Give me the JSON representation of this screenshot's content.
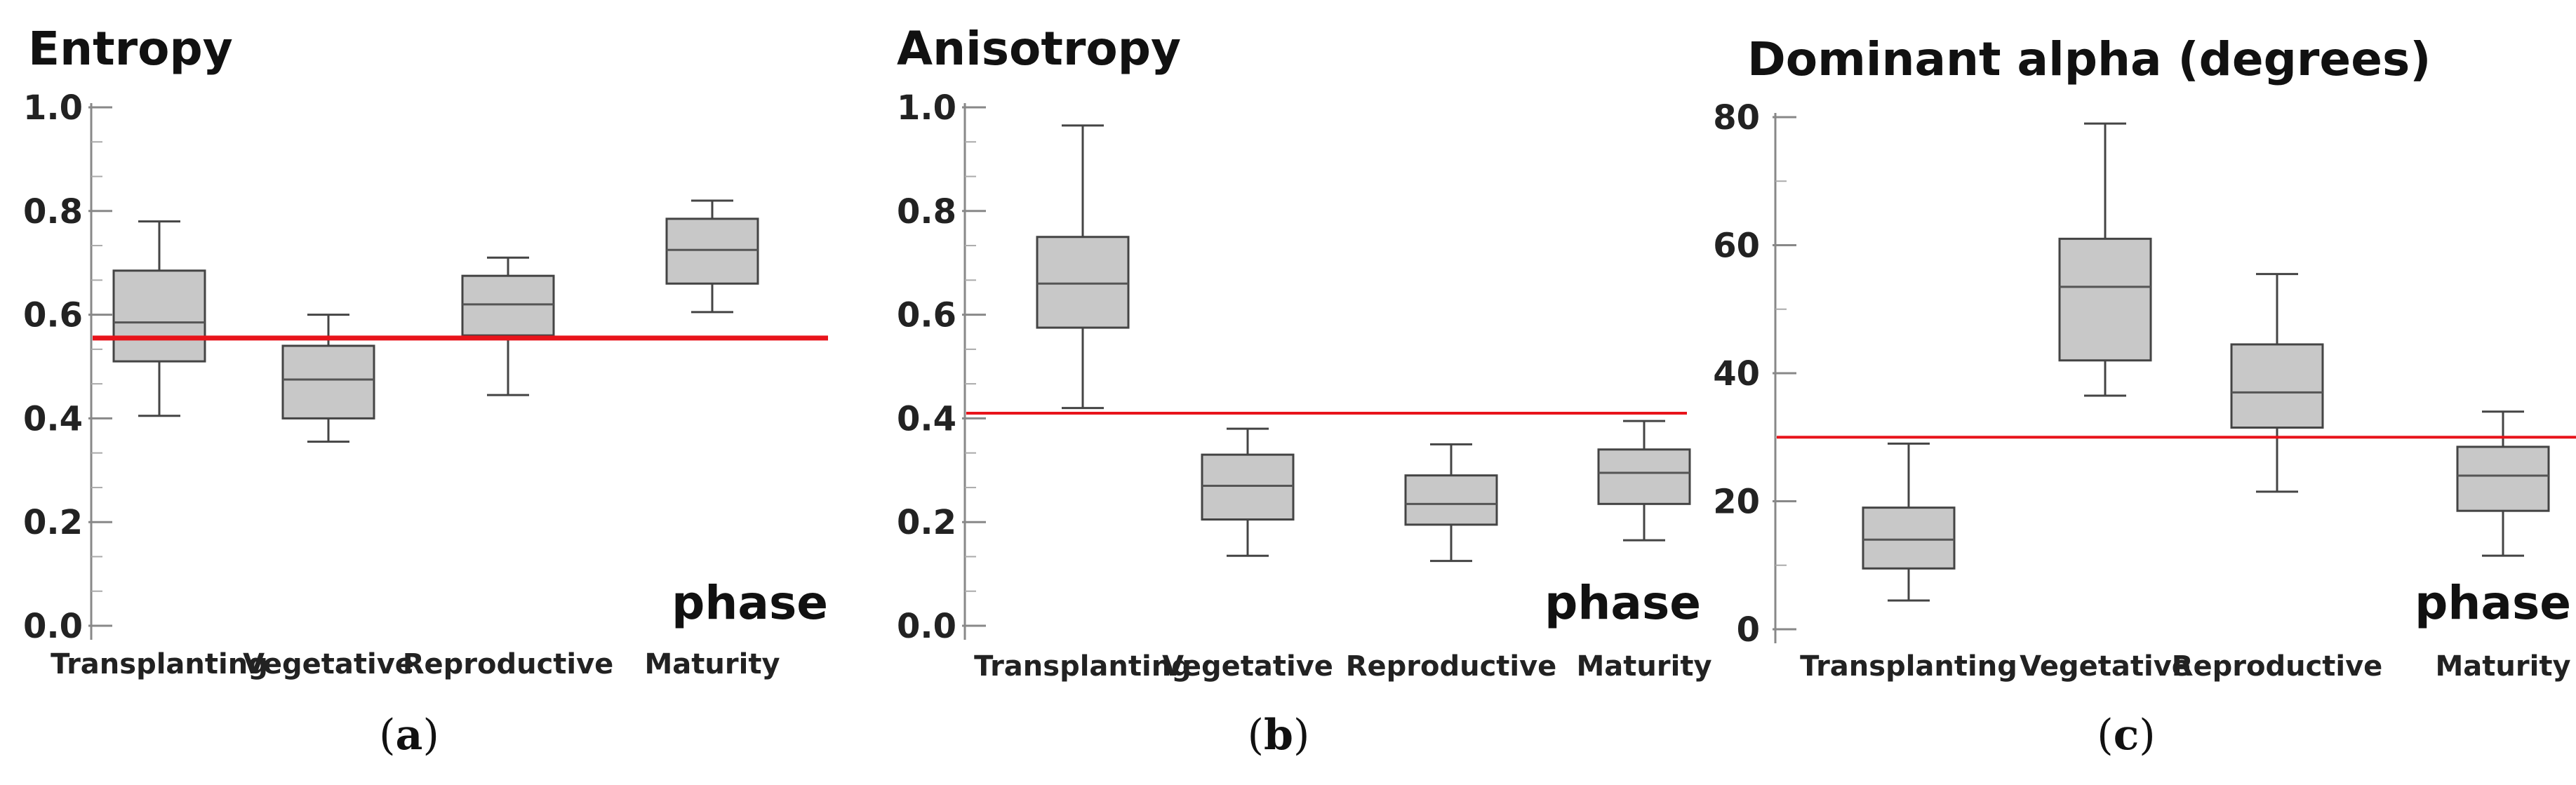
{
  "chart_data": [
    {
      "type": "box",
      "title": "Entropy",
      "categories": [
        "Transplanting",
        "Vegetative",
        "Reproductive",
        "Maturity"
      ],
      "xlabel": "phase",
      "ylabel": "",
      "ylim": [
        0.0,
        1.0
      ],
      "yticks": [
        0.0,
        0.2,
        0.4,
        0.6,
        0.8,
        1.0
      ],
      "ytick_labels": [
        "0.0",
        "0.2",
        "0.4",
        "0.6",
        "0.8",
        "1.0"
      ],
      "boxes": [
        {
          "min": 0.405,
          "q1": 0.51,
          "median": 0.585,
          "q3": 0.685,
          "max": 0.78
        },
        {
          "min": 0.355,
          "q1": 0.4,
          "median": 0.475,
          "q3": 0.54,
          "max": 0.6
        },
        {
          "min": 0.445,
          "q1": 0.56,
          "median": 0.62,
          "q3": 0.675,
          "max": 0.71
        },
        {
          "min": 0.605,
          "q1": 0.66,
          "median": 0.725,
          "q3": 0.785,
          "max": 0.82
        }
      ],
      "reference_line": 0.555,
      "caption": "(a)"
    },
    {
      "type": "box",
      "title": "Anisotropy",
      "categories": [
        "Transplanting",
        "Vegetative",
        "Reproductive",
        "Maturity"
      ],
      "xlabel": "phase",
      "ylabel": "",
      "ylim": [
        0.0,
        1.0
      ],
      "yticks": [
        0.0,
        0.2,
        0.4,
        0.6,
        0.8,
        1.0
      ],
      "ytick_labels": [
        "0.0",
        "0.2",
        "0.4",
        "0.6",
        "0.8",
        "1.0"
      ],
      "boxes": [
        {
          "min": 0.42,
          "q1": 0.575,
          "median": 0.66,
          "q3": 0.75,
          "max": 0.965
        },
        {
          "min": 0.135,
          "q1": 0.205,
          "median": 0.27,
          "q3": 0.33,
          "max": 0.38
        },
        {
          "min": 0.125,
          "q1": 0.195,
          "median": 0.235,
          "q3": 0.29,
          "max": 0.35
        },
        {
          "min": 0.165,
          "q1": 0.235,
          "median": 0.295,
          "q3": 0.34,
          "max": 0.395
        }
      ],
      "reference_line": 0.41,
      "caption": "(b)"
    },
    {
      "type": "box",
      "title": "Dominant alpha (degrees)",
      "categories": [
        "Transplanting",
        "Vegetative",
        "Reproductive",
        "Maturity"
      ],
      "xlabel": "phase",
      "ylabel": "",
      "ylim": [
        0,
        80
      ],
      "yticks": [
        0,
        20,
        40,
        60,
        80
      ],
      "ytick_labels": [
        "0",
        "20",
        "40",
        "60",
        "80"
      ],
      "boxes": [
        {
          "min": 4.5,
          "q1": 9.5,
          "median": 14,
          "q3": 19,
          "max": 29
        },
        {
          "min": 36.5,
          "q1": 42,
          "median": 53.5,
          "q3": 61,
          "max": 79
        },
        {
          "min": 21.5,
          "q1": 31.5,
          "median": 37,
          "q3": 44.5,
          "max": 55.5
        },
        {
          "min": 11.5,
          "q1": 18.5,
          "median": 24,
          "q3": 28.5,
          "max": 34
        }
      ],
      "reference_line": 30,
      "caption": "(c)"
    }
  ]
}
